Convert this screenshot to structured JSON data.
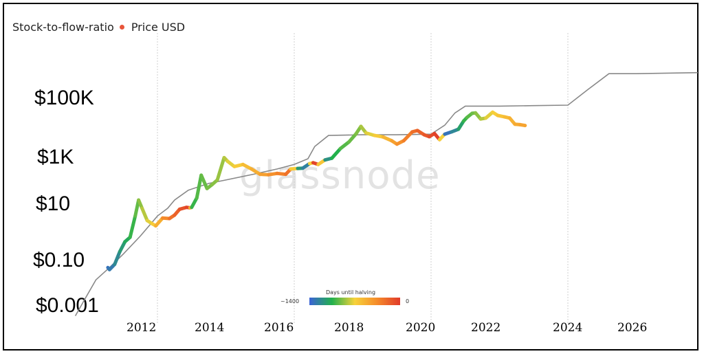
{
  "chart_data": {
    "type": "line",
    "legend": {
      "stock_to_flow_label": "Stock-to-flow-ratio",
      "price_label": "Price USD",
      "price_dot_color": "#e8553a",
      "placement": "top-left"
    },
    "watermark": "glassnode",
    "y_axis": {
      "scale": "log",
      "tick_labels": [
        "$100K",
        "$1K",
        "$10",
        "$0.10",
        "$0.001"
      ],
      "tick_values": [
        100000,
        1000,
        10,
        0.1,
        0.001
      ]
    },
    "x_axis": {
      "tick_labels": [
        "2012",
        "2014",
        "2016",
        "2018",
        "2020",
        "2022",
        "2024",
        "2026"
      ]
    },
    "grid": {
      "vertical_dashed_at": [
        2012,
        2016,
        2020,
        2024
      ]
    },
    "colorbar": {
      "title": "Days until halving",
      "min_label": "~1400",
      "max_label": "0",
      "colors": [
        "#3b63d6",
        "#22b14c",
        "#f7d23a",
        "#f58a2a",
        "#e03a2a"
      ]
    },
    "series": [
      {
        "name": "Stock-to-flow-ratio",
        "color": "#888888",
        "points": [
          [
            2009.6,
            0.0008
          ],
          [
            2009.9,
            0.004
          ],
          [
            2010.2,
            0.02
          ],
          [
            2010.6,
            0.06
          ],
          [
            2011.0,
            0.2
          ],
          [
            2011.5,
            1
          ],
          [
            2012.0,
            6
          ],
          [
            2012.3,
            12
          ],
          [
            2012.5,
            25
          ],
          [
            2012.9,
            60
          ],
          [
            2013.5,
            110
          ],
          [
            2014.0,
            150
          ],
          [
            2014.8,
            250
          ],
          [
            2015.5,
            400
          ],
          [
            2016.0,
            600
          ],
          [
            2016.4,
            1000
          ],
          [
            2016.6,
            3000
          ],
          [
            2017.0,
            8000
          ],
          [
            2018.0,
            8500
          ],
          [
            2019.0,
            8500
          ],
          [
            2020.0,
            9000
          ],
          [
            2020.4,
            20000
          ],
          [
            2020.7,
            60000
          ],
          [
            2021.0,
            110000
          ],
          [
            2022.0,
            110000
          ],
          [
            2023.0,
            115000
          ],
          [
            2024.0,
            120000
          ],
          [
            2024.6,
            500000
          ],
          [
            2025.2,
            2000000
          ],
          [
            2026.0,
            2000000
          ],
          [
            2027.8,
            2200000
          ]
        ]
      },
      {
        "name": "Price USD",
        "color_scale": "days_until_halving",
        "points": [
          [
            2010.55,
            0.06,
            0.05
          ],
          [
            2010.6,
            0.05,
            0.05
          ],
          [
            2010.75,
            0.08,
            0.1
          ],
          [
            2010.9,
            0.25,
            0.15
          ],
          [
            2011.05,
            0.6,
            0.2
          ],
          [
            2011.2,
            0.9,
            0.25
          ],
          [
            2011.35,
            6,
            0.3
          ],
          [
            2011.45,
            25,
            0.35
          ],
          [
            2011.55,
            12,
            0.4
          ],
          [
            2011.7,
            4,
            0.45
          ],
          [
            2011.85,
            3,
            0.5
          ],
          [
            2011.95,
            2.5,
            0.55
          ],
          [
            2012.15,
            5,
            0.7
          ],
          [
            2012.35,
            4.8,
            0.8
          ],
          [
            2012.5,
            6.5,
            0.85
          ],
          [
            2012.65,
            11,
            0.9
          ],
          [
            2012.85,
            13,
            0.95
          ],
          [
            2012.95,
            12.5,
            0.98
          ],
          [
            2013.0,
            13,
            0.25
          ],
          [
            2013.15,
            30,
            0.3
          ],
          [
            2013.28,
            230,
            0.32
          ],
          [
            2013.45,
            70,
            0.34
          ],
          [
            2013.6,
            100,
            0.36
          ],
          [
            2013.75,
            150,
            0.38
          ],
          [
            2013.95,
            1100,
            0.4
          ],
          [
            2014.05,
            800,
            0.45
          ],
          [
            2014.25,
            500,
            0.5
          ],
          [
            2014.5,
            600,
            0.55
          ],
          [
            2014.75,
            400,
            0.6
          ],
          [
            2015.0,
            250,
            0.65
          ],
          [
            2015.25,
            240,
            0.7
          ],
          [
            2015.5,
            270,
            0.75
          ],
          [
            2015.75,
            250,
            0.8
          ],
          [
            2015.9,
            400,
            0.85
          ],
          [
            2016.1,
            420,
            0.2
          ],
          [
            2016.25,
            430,
            0.15
          ],
          [
            2016.45,
            650,
            0.05
          ],
          [
            2016.55,
            700,
            0.95
          ],
          [
            2016.7,
            600,
            0.98
          ],
          [
            2016.9,
            900,
            0.1
          ],
          [
            2017.1,
            1050,
            0.2
          ],
          [
            2017.35,
            2500,
            0.3
          ],
          [
            2017.6,
            4500,
            0.32
          ],
          [
            2017.8,
            9000,
            0.35
          ],
          [
            2017.95,
            18000,
            0.37
          ],
          [
            2018.1,
            10000,
            0.45
          ],
          [
            2018.35,
            8000,
            0.5
          ],
          [
            2018.6,
            7000,
            0.55
          ],
          [
            2018.85,
            5000,
            0.65
          ],
          [
            2019.0,
            3700,
            0.7
          ],
          [
            2019.2,
            5000,
            0.75
          ],
          [
            2019.45,
            11000,
            0.82
          ],
          [
            2019.6,
            12500,
            0.85
          ],
          [
            2019.8,
            8500,
            0.9
          ],
          [
            2019.95,
            7200,
            0.92
          ],
          [
            2020.1,
            9500,
            0.96
          ],
          [
            2020.25,
            5500,
            0.99
          ],
          [
            2020.4,
            9000,
            0.02
          ],
          [
            2020.6,
            11000,
            0.08
          ],
          [
            2020.8,
            14000,
            0.15
          ],
          [
            2020.95,
            29000,
            0.25
          ],
          [
            2021.05,
            40000,
            0.3
          ],
          [
            2021.2,
            58000,
            0.33
          ],
          [
            2021.3,
            60000,
            0.35
          ],
          [
            2021.45,
            35000,
            0.4
          ],
          [
            2021.6,
            38000,
            0.45
          ],
          [
            2021.8,
            64000,
            0.5
          ],
          [
            2021.95,
            48000,
            0.53
          ],
          [
            2022.15,
            42000,
            0.57
          ],
          [
            2022.3,
            38000,
            0.6
          ],
          [
            2022.45,
            22000,
            0.63
          ],
          [
            2022.6,
            21000,
            0.65
          ],
          [
            2022.75,
            19500,
            0.67
          ]
        ]
      }
    ]
  }
}
